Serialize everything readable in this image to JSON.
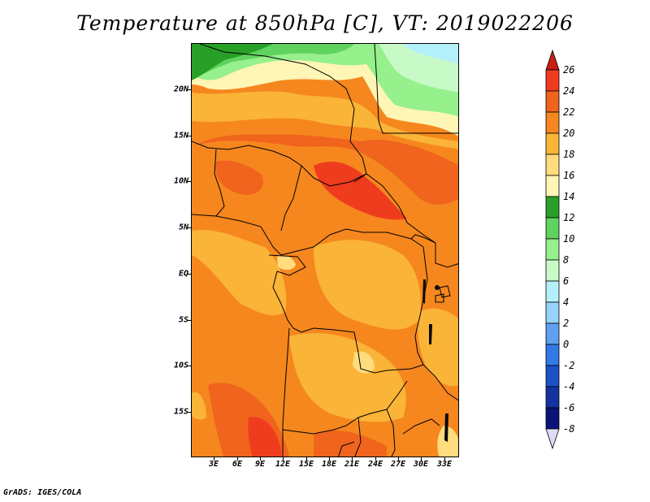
{
  "title": "Temperature at 850hPa [C], VT: 2019022206",
  "credit": "GrADS: IGES/COLA",
  "lat_labels": [
    "20N",
    "15N",
    "10N",
    "5N",
    "EQ",
    "5S",
    "10S",
    "15S"
  ],
  "lon_labels": [
    "3E",
    "6E",
    "9E",
    "12E",
    "15E",
    "18E",
    "21E",
    "24E",
    "27E",
    "30E",
    "33E"
  ],
  "colorbar": {
    "labels": [
      "26",
      "24",
      "22",
      "20",
      "18",
      "16",
      "14",
      "12",
      "10",
      "8",
      "6",
      "4",
      "2",
      "0",
      "-2",
      "-4",
      "-6",
      "-8"
    ],
    "colors": [
      "#c81e14",
      "#f03c1e",
      "#f0641e",
      "#f5871e",
      "#fab437",
      "#ffdc7d",
      "#fff5b4",
      "#28a028",
      "#5fd25f",
      "#96f08c",
      "#c8fac8",
      "#b4f0fa",
      "#96d2fa",
      "#5fa0f0",
      "#3278e6",
      "#1e50c8",
      "#1432a0",
      "#0a1478",
      "#dcdcf5"
    ]
  }
}
